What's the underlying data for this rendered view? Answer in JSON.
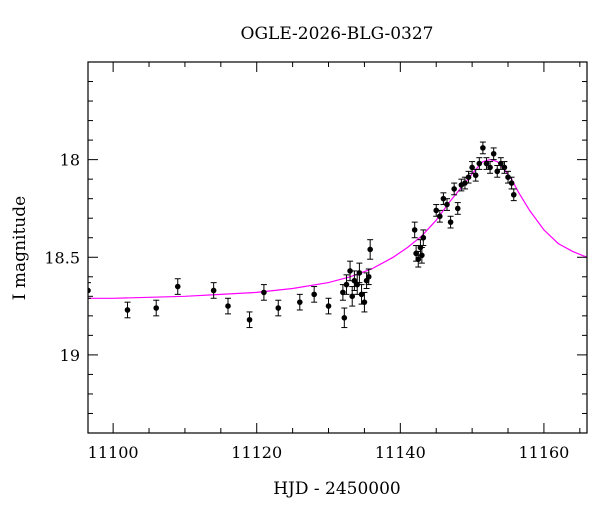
{
  "chart_data": {
    "type": "scatter",
    "title": "OGLE-2026-BLG-0327",
    "xlabel": "HJD - 2450000",
    "ylabel": "I magnitude",
    "xlim": [
      11096.5,
      11166
    ],
    "ylim": [
      19.4,
      17.5
    ],
    "y_inverted": true,
    "xticks": [
      11100,
      11120,
      11140,
      11160
    ],
    "yticks": [
      18,
      18.5,
      19
    ],
    "xtick_labels": [
      "11100",
      "11120",
      "11140",
      "11160"
    ],
    "ytick_labels": [
      "18",
      "18.5",
      "19"
    ],
    "x_minor_step": 5,
    "y_minor_step": 0.1,
    "grid": false,
    "legend": false,
    "colors": {
      "points": "#000000",
      "model": "#ff00ff",
      "frame": "#000000"
    },
    "series": [
      {
        "type": "scatter_errorbar",
        "x": [
          11096.5,
          11102,
          11106,
          11109,
          11114,
          11116,
          11119,
          11121,
          11123,
          11126,
          11128,
          11130,
          11132,
          11132.2,
          11132.5,
          11133,
          11133.3,
          11133.6,
          11134,
          11134.3,
          11134.6,
          11135,
          11135.3,
          11135.6,
          11135.8,
          11142,
          11142.2,
          11142.5,
          11142.8,
          11143,
          11143.2,
          11145,
          11145.5,
          11146,
          11146.5,
          11147,
          11147.5,
          11148,
          11148.5,
          11149,
          11149.5,
          11150,
          11150.5,
          11151,
          11151.5,
          11152,
          11152.5,
          11153,
          11153.5,
          11154,
          11154.5,
          11155,
          11155.5,
          11155.8
        ],
        "y": [
          18.67,
          18.77,
          18.76,
          18.65,
          18.67,
          18.75,
          18.82,
          18.68,
          18.76,
          18.73,
          18.69,
          18.75,
          18.68,
          18.81,
          18.64,
          18.57,
          18.7,
          18.62,
          18.64,
          18.58,
          18.69,
          18.73,
          18.62,
          18.6,
          18.46,
          18.36,
          18.48,
          18.51,
          18.45,
          18.49,
          18.4,
          18.26,
          18.29,
          18.2,
          18.23,
          18.32,
          18.15,
          18.25,
          18.13,
          18.12,
          18.09,
          18.04,
          18.08,
          18.02,
          17.94,
          18.02,
          18.04,
          17.97,
          18.06,
          18.02,
          18.04,
          18.09,
          18.12,
          18.18
        ],
        "yerr": [
          0.04,
          0.04,
          0.04,
          0.04,
          0.04,
          0.04,
          0.04,
          0.04,
          0.04,
          0.04,
          0.04,
          0.04,
          0.04,
          0.05,
          0.05,
          0.05,
          0.05,
          0.05,
          0.05,
          0.05,
          0.05,
          0.05,
          0.04,
          0.04,
          0.05,
          0.04,
          0.04,
          0.04,
          0.04,
          0.04,
          0.04,
          0.03,
          0.03,
          0.03,
          0.03,
          0.03,
          0.03,
          0.03,
          0.03,
          0.03,
          0.03,
          0.03,
          0.03,
          0.03,
          0.03,
          0.03,
          0.03,
          0.03,
          0.03,
          0.03,
          0.03,
          0.03,
          0.03,
          0.03
        ]
      },
      {
        "type": "line",
        "x": [
          11096.5,
          11100,
          11105,
          11110,
          11115,
          11120,
          11125,
          11130,
          11133,
          11136,
          11139,
          11141,
          11143,
          11145,
          11147,
          11149,
          11150.5,
          11151.5,
          11152.5,
          11153.5,
          11154.5,
          11155.5,
          11156.5,
          11158,
          11160,
          11162,
          11164,
          11166
        ],
        "y": [
          18.71,
          18.71,
          18.705,
          18.7,
          18.69,
          18.68,
          18.66,
          18.63,
          18.6,
          18.56,
          18.5,
          18.45,
          18.39,
          18.31,
          18.21,
          18.12,
          18.05,
          18.01,
          18.0,
          18.01,
          18.05,
          18.1,
          18.17,
          18.26,
          18.36,
          18.43,
          18.47,
          18.5
        ]
      }
    ]
  }
}
